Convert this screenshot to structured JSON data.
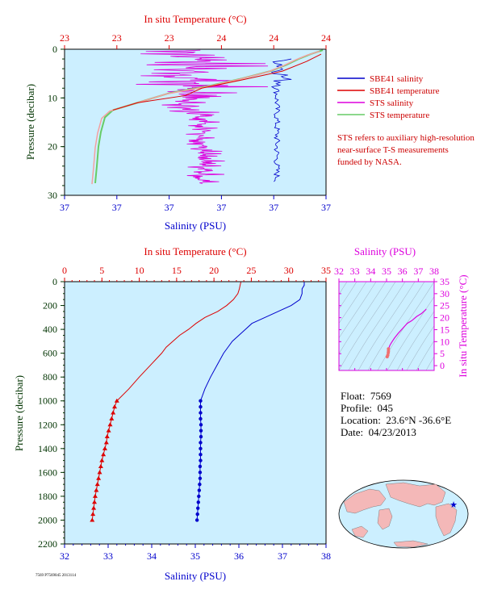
{
  "colors": {
    "panel_bg": "#ccefff",
    "salinity": "#0000cc",
    "temperature": "#dd0000",
    "sts_salinity": "#dd00dd",
    "sts_temperature": "#66cc66",
    "map_land": "#f4b8b8",
    "map_ocean": "#ccefff",
    "axis_pressure": "#003300"
  },
  "top_chart": {
    "top_axis_label": "In situ Temperature (°C)",
    "top_ticks": [
      "23",
      "23",
      "23",
      "24",
      "24",
      "24"
    ],
    "bottom_axis_label": "Salinity (PSU)",
    "bottom_ticks": [
      "37",
      "37",
      "37",
      "37",
      "37",
      "37"
    ],
    "left_axis_label": "Pressure (decibar)",
    "left_ticks": [
      "0",
      "10",
      "20",
      "30"
    ]
  },
  "legend": {
    "items": [
      {
        "label": "SBE41 salinity",
        "color": "#0000cc"
      },
      {
        "label": "SBE41 temperature",
        "color": "#dd0000"
      },
      {
        "label": "STS salinity",
        "color": "#dd00dd"
      },
      {
        "label": "STS temperature",
        "color": "#66cc66"
      }
    ]
  },
  "note": "STS refers to auxiliary high-resolution near-surface T-S measurements funded by NASA.",
  "main_chart": {
    "top_axis_label": "In situ Temperature (°C)",
    "top_ticks": [
      "0",
      "5",
      "10",
      "15",
      "20",
      "25",
      "30",
      "35"
    ],
    "bottom_axis_label": "Salinity (PSU)",
    "bottom_ticks": [
      "32",
      "33",
      "34",
      "35",
      "36",
      "37",
      "38"
    ],
    "left_axis_label": "Pressure (decibar)",
    "left_ticks": [
      "0",
      "200",
      "400",
      "600",
      "800",
      "1000",
      "1200",
      "1400",
      "1600",
      "1800",
      "2000",
      "2200"
    ]
  },
  "ts_chart": {
    "top_axis_label": "Salinity (PSU)",
    "top_ticks": [
      "32",
      "33",
      "34",
      "35",
      "36",
      "37",
      "38"
    ],
    "right_axis_label": "In situ Temperature (°C)",
    "right_ticks": [
      "0",
      "5",
      "10",
      "15",
      "20",
      "25",
      "30",
      "35"
    ]
  },
  "info": {
    "float_label": "Float:",
    "float_value": "7569",
    "profile_label": "Profile:",
    "profile_value": "045",
    "location_label": "Location:",
    "location_value": "23.6°N  -36.6°E",
    "date_label": "Date:",
    "date_value": "04/23/2013"
  },
  "footer": "7569 P7569045 2013114",
  "chart_data": [
    {
      "type": "line",
      "title": "",
      "xlabel": "Salinity (PSU)",
      "x2label": "In situ Temperature (°C)",
      "ylabel": "Pressure (decibar)",
      "xlim": [
        32,
        38
      ],
      "x2lim": [
        0,
        35
      ],
      "ylim": [
        2200,
        0
      ],
      "series": [
        {
          "name": "SBE41 salinity",
          "pressure": [
            4,
            30,
            60,
            100,
            150,
            200,
            250,
            300,
            350,
            400,
            450,
            500,
            550,
            600,
            700,
            800,
            900,
            1000,
            1050,
            1100,
            1150,
            1200,
            1250,
            1300,
            1350,
            1400,
            1450,
            1500,
            1550,
            1600,
            1650,
            1700,
            1750,
            1800,
            1850,
            1900,
            1950,
            2000
          ],
          "values": [
            37.5,
            37.5,
            37.45,
            37.45,
            37.4,
            37.2,
            36.9,
            36.6,
            36.3,
            36.15,
            36.0,
            35.85,
            35.75,
            35.65,
            35.5,
            35.35,
            35.22,
            35.12,
            35.12,
            35.12,
            35.12,
            35.13,
            35.13,
            35.13,
            35.12,
            35.12,
            35.12,
            35.12,
            35.11,
            35.11,
            35.11,
            35.1,
            35.09,
            35.08,
            35.07,
            35.06,
            35.05,
            35.04
          ]
        },
        {
          "name": "SBE41 temperature",
          "pressure": [
            4,
            30,
            60,
            100,
            150,
            200,
            250,
            300,
            350,
            400,
            450,
            500,
            550,
            600,
            700,
            800,
            900,
            1000,
            1050,
            1100,
            1150,
            1200,
            1250,
            1300,
            1350,
            1400,
            1450,
            1500,
            1550,
            1600,
            1650,
            1700,
            1750,
            1800,
            1850,
            1900,
            1950,
            2000
          ],
          "values": [
            23.6,
            23.5,
            23.4,
            23.2,
            22.6,
            21.7,
            20.5,
            18.8,
            17.6,
            16.6,
            15.4,
            14.5,
            13.6,
            13.0,
            11.5,
            10.0,
            8.6,
            7.0,
            6.7,
            6.5,
            6.3,
            6.1,
            5.9,
            5.7,
            5.6,
            5.4,
            5.2,
            5.0,
            4.85,
            4.7,
            4.55,
            4.4,
            4.25,
            4.1,
            4.0,
            3.9,
            3.8,
            3.7
          ]
        }
      ]
    },
    {
      "type": "scatter",
      "title": "",
      "xlabel": "Salinity (PSU)",
      "ylabel": "In situ Temperature (°C)",
      "xlim": [
        32,
        38
      ],
      "ylim": [
        -2,
        35
      ],
      "series": [
        {
          "name": "",
          "x": [
            37.5,
            37.45,
            37.2,
            36.9,
            36.6,
            36.3,
            36.0,
            35.75,
            35.5,
            35.35,
            35.22,
            35.12,
            35.12,
            35.11,
            35.08,
            35.04
          ],
          "y": [
            23.6,
            23.2,
            21.7,
            20.5,
            18.8,
            17.6,
            15.4,
            13.6,
            11.5,
            10.0,
            8.6,
            7.0,
            6.1,
            5.4,
            4.4,
            3.7
          ]
        }
      ]
    }
  ]
}
